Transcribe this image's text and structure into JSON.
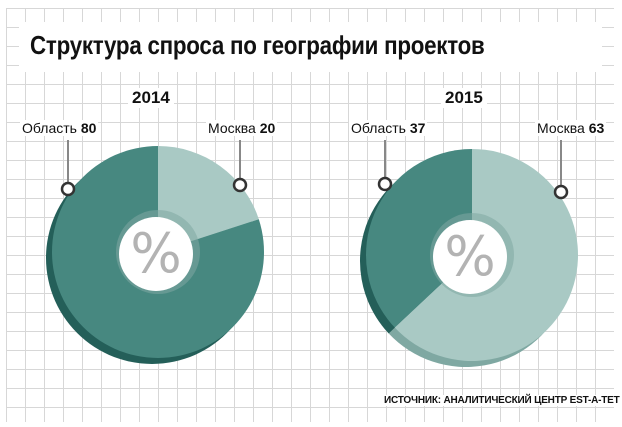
{
  "title": "Структура спроса по географии проектов",
  "source": "ИСТОЧНИК: АНАЛИТИЧЕСКИЙ ЦЕНТР EST-A-TET",
  "center_symbol": "%",
  "colors": {
    "dark": "#478880",
    "light": "#a9c9c4",
    "dark_edge": "#245f59",
    "light_edge": "#7fa8a2",
    "center": "#ffffff",
    "symbol": "#b3b3b3"
  },
  "chart_data": [
    {
      "type": "pie",
      "title": "2014",
      "slices": [
        {
          "label": "Область",
          "value": 80
        },
        {
          "label": "Москва",
          "value": 20
        }
      ]
    },
    {
      "type": "pie",
      "title": "2015",
      "slices": [
        {
          "label": "Область",
          "value": 37
        },
        {
          "label": "Москва",
          "value": 63
        }
      ]
    }
  ]
}
